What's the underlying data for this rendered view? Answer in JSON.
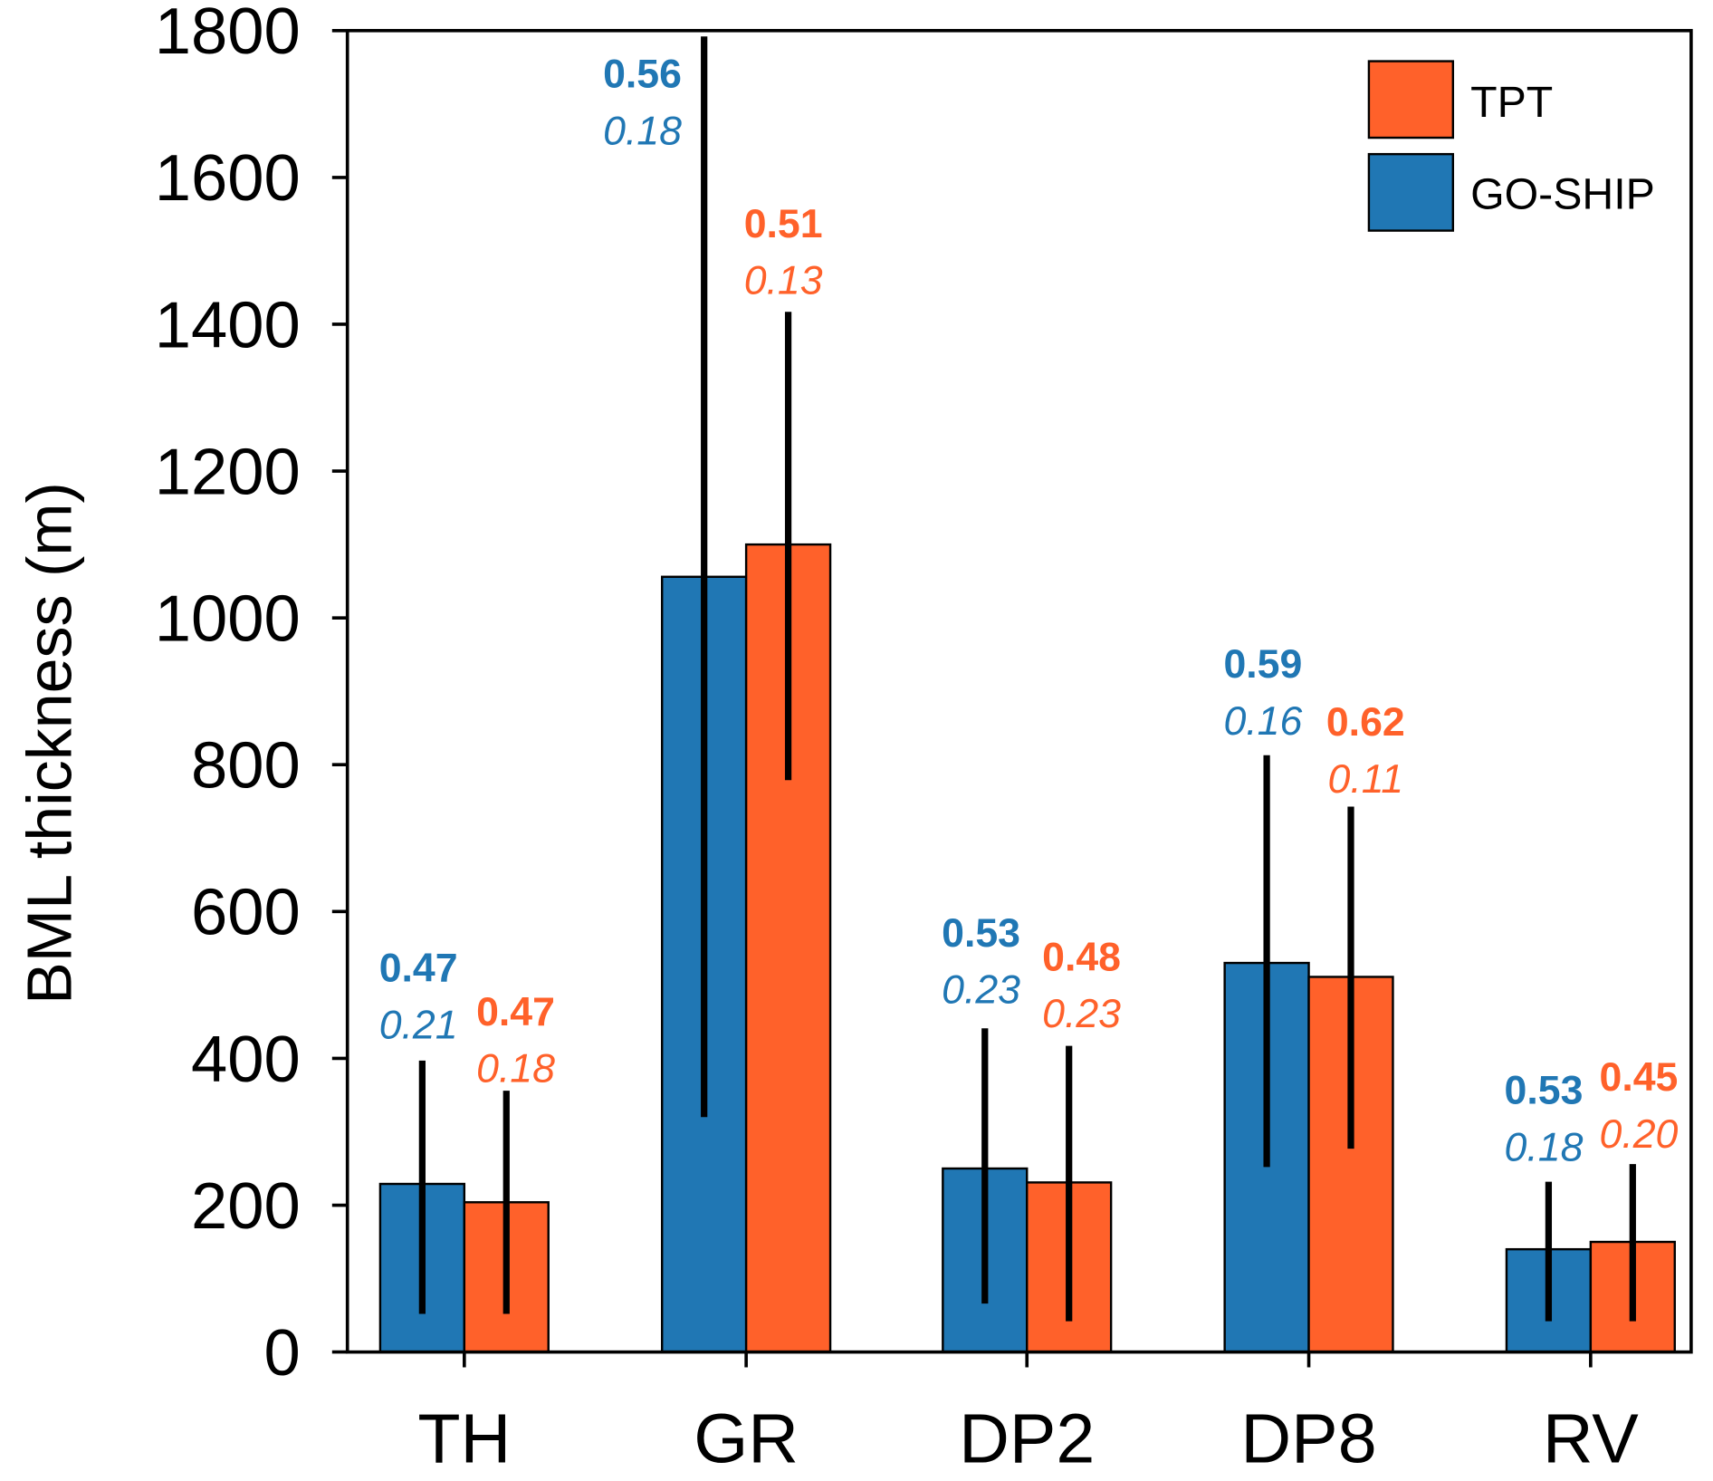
{
  "chart_data": {
    "type": "bar",
    "title": "",
    "xlabel": "",
    "ylabel": "BML thickness (m)",
    "ylim": [
      0,
      1800
    ],
    "yticks": [
      "0",
      "200",
      "400",
      "600",
      "800",
      "1000",
      "1200",
      "1400",
      "1600",
      "1800"
    ],
    "categories": [
      "TH",
      "GR",
      "DP2",
      "DP8",
      "RV"
    ],
    "grid": false,
    "legend_position": "top-right",
    "legend": [
      "TPT",
      "GO-SHIP"
    ],
    "series": [
      {
        "name": "GO-SHIP",
        "color": "#2077b4",
        "values": [
          229,
          1056,
          250,
          530,
          140
        ],
        "error_low": [
          52,
          320,
          66,
          252,
          42
        ],
        "error_high": [
          397,
          1792,
          441,
          813,
          232
        ],
        "annotation_bold": [
          "0.47",
          "0.56",
          "0.53",
          "0.59",
          "0.53"
        ],
        "annotation_italic": [
          "0.21",
          "0.18",
          "0.23",
          "0.16",
          "0.18"
        ]
      },
      {
        "name": "TPT",
        "color": "#ff612a",
        "values": [
          204,
          1100,
          231,
          511,
          150
        ],
        "error_low": [
          52,
          779,
          42,
          277,
          42
        ],
        "error_high": [
          356,
          1417,
          417,
          743,
          256
        ],
        "annotation_bold": [
          "0.47",
          "0.51",
          "0.48",
          "0.62",
          "0.45"
        ],
        "annotation_italic": [
          "0.18",
          "0.13",
          "0.23",
          "0.11",
          "0.20"
        ]
      }
    ]
  }
}
